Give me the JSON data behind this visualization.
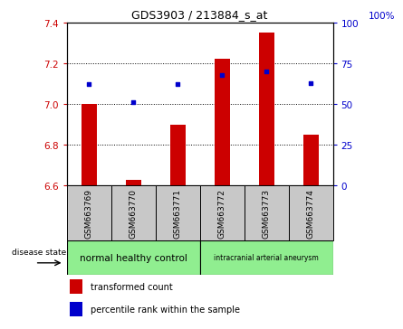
{
  "title": "GDS3903 / 213884_s_at",
  "samples": [
    "GSM663769",
    "GSM663770",
    "GSM663771",
    "GSM663772",
    "GSM663773",
    "GSM663774"
  ],
  "bar_values": [
    7.0,
    6.63,
    6.9,
    7.22,
    7.35,
    6.85
  ],
  "bar_base": 6.6,
  "percentile_values": [
    62,
    51,
    62,
    68,
    70,
    63
  ],
  "ylim_left": [
    6.6,
    7.4
  ],
  "ylim_right": [
    0,
    100
  ],
  "yticks_left": [
    6.6,
    6.8,
    7.0,
    7.2,
    7.4
  ],
  "yticks_right": [
    0,
    25,
    50,
    75,
    100
  ],
  "bar_color": "#CC0000",
  "dot_color": "#0000CC",
  "group1_label": "normal healthy control",
  "group2_label": "intracranial arterial aneurysm",
  "group_color": "#90EE90",
  "sample_box_color": "#C8C8C8",
  "disease_state_label": "disease state",
  "legend_bar_label": "transformed count",
  "legend_dot_label": "percentile rank within the sample",
  "left_axis_color": "#CC0000",
  "right_axis_color": "#0000CC",
  "right_axis_top_label": "100%"
}
